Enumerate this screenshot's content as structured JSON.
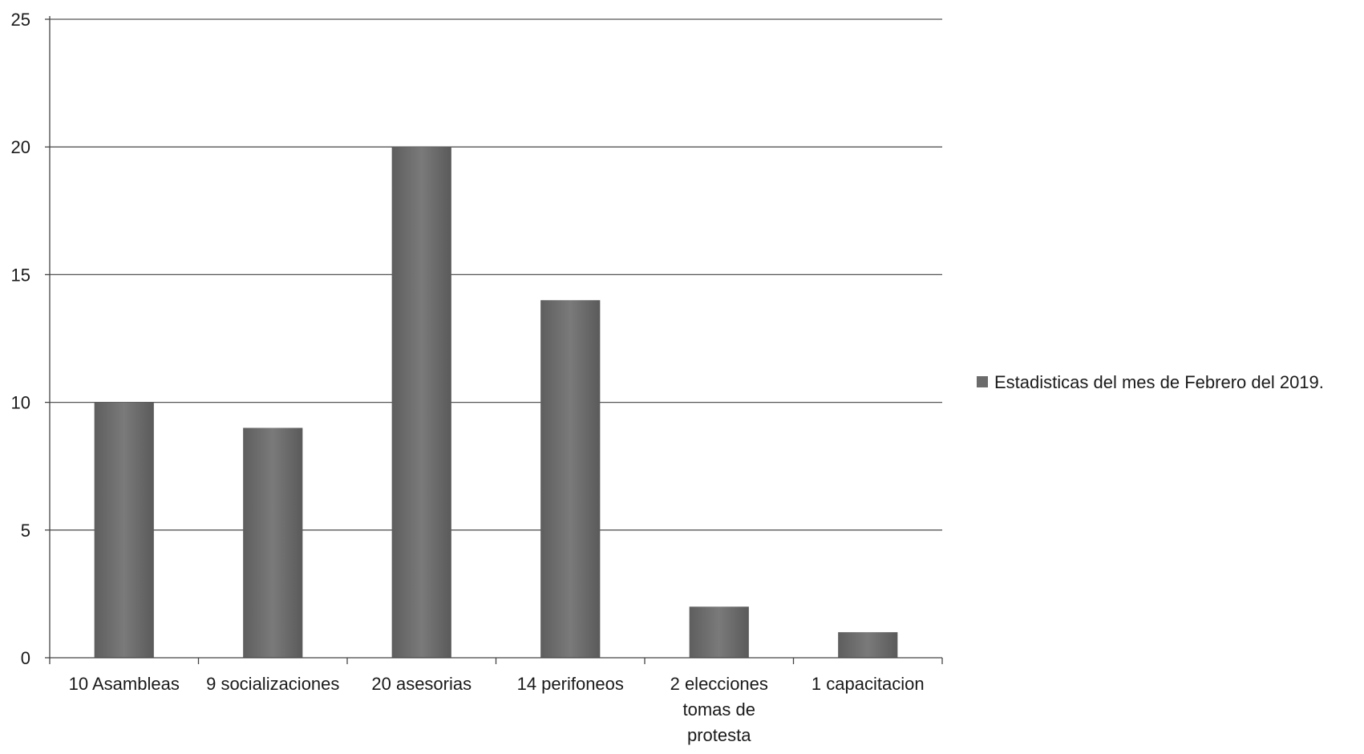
{
  "chart_data": {
    "type": "bar",
    "categories": [
      "10  Asambleas",
      "9 socializaciones",
      "20 asesorias",
      "14 perifoneos",
      "2 elecciones tomas de protesta",
      "1 capacitacion"
    ],
    "category_lines": [
      [
        "10  Asambleas"
      ],
      [
        "9 socializaciones"
      ],
      [
        "20 asesorias"
      ],
      [
        "14 perifoneos"
      ],
      [
        "2 elecciones",
        "tomas de",
        "protesta"
      ],
      [
        "1 capacitacion"
      ]
    ],
    "series": [
      {
        "name": "Estadisticas del mes de  Febrero del 2019.",
        "values": [
          10,
          9,
          20,
          14,
          2,
          1
        ],
        "color": "#6b6b6b"
      }
    ],
    "ylim": [
      0,
      25
    ],
    "yticks": [
      0,
      5,
      10,
      15,
      20,
      25
    ],
    "grid": true,
    "legend": "right",
    "title": "",
    "xlabel": "",
    "ylabel": ""
  }
}
